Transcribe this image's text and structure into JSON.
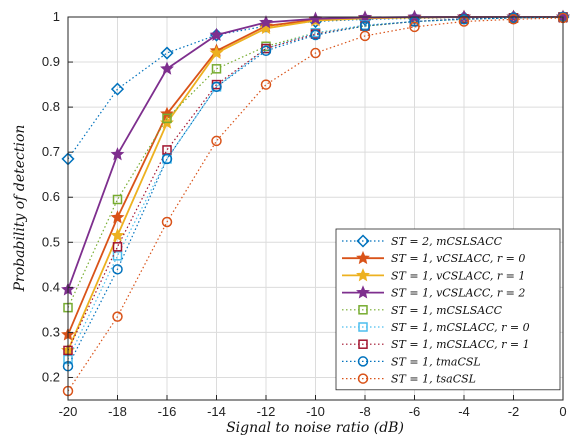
{
  "chart_data": {
    "type": "line",
    "xlabel": "Signal to noise ratio (dB)",
    "ylabel": "Probability of detection",
    "xlim": [
      -20,
      0
    ],
    "ylim": [
      0.15,
      1.0
    ],
    "xticks": [
      "-20",
      "-18",
      "-16",
      "-14",
      "-12",
      "-10",
      "-8",
      "-6",
      "-4",
      "-2",
      "0"
    ],
    "yticks": [
      "0.2",
      "0.3",
      "0.4",
      "0.5",
      "0.6",
      "0.7",
      "0.8",
      "0.9",
      "1"
    ],
    "grid": true,
    "legend_position": "bottom-right",
    "x": [
      -20,
      -18,
      -16,
      -14,
      -12,
      -10,
      -8,
      -6,
      -4,
      -2,
      0
    ],
    "series": [
      {
        "name": "ST = 2, mCSLSACC",
        "color": "#0072BD",
        "marker": "diamond",
        "line": "dotted",
        "filled": false,
        "values": [
          0.685,
          0.84,
          0.92,
          0.96,
          0.98,
          0.99,
          0.995,
          0.997,
          0.999,
          1.0,
          1.0
        ]
      },
      {
        "name": "ST = 1, vCSLACC, r = 0",
        "color": "#D95319",
        "marker": "star",
        "line": "solid",
        "filled": true,
        "values": [
          0.295,
          0.555,
          0.785,
          0.925,
          0.98,
          0.994,
          0.998,
          0.999,
          1.0,
          1.0,
          1.0
        ]
      },
      {
        "name": "ST = 1, vCSLACC, r = 1",
        "color": "#EDB120",
        "marker": "star",
        "line": "solid",
        "filled": true,
        "values": [
          0.26,
          0.515,
          0.765,
          0.92,
          0.975,
          0.992,
          0.997,
          0.999,
          1.0,
          1.0,
          1.0
        ]
      },
      {
        "name": "ST = 1, vCSLACC, r = 2",
        "color": "#7E2F8E",
        "marker": "star",
        "line": "solid",
        "filled": true,
        "values": [
          0.395,
          0.695,
          0.885,
          0.96,
          0.988,
          0.996,
          0.999,
          1.0,
          1.0,
          1.0,
          1.0
        ]
      },
      {
        "name": "ST = 1, mCSLSACC",
        "color": "#77AC30",
        "marker": "square",
        "line": "dotted",
        "filled": false,
        "values": [
          0.355,
          0.595,
          0.775,
          0.885,
          0.935,
          0.965,
          0.98,
          0.99,
          0.995,
          0.998,
          1.0
        ]
      },
      {
        "name": "ST = 1, mCSLACC, r = 0",
        "color": "#4DBEEE",
        "marker": "square",
        "line": "dotted",
        "filled": false,
        "values": [
          0.24,
          0.47,
          0.685,
          0.845,
          0.93,
          0.965,
          0.982,
          0.99,
          0.996,
          0.998,
          1.0
        ]
      },
      {
        "name": "ST = 1, mCSLACC, r = 1",
        "color": "#A2142F",
        "marker": "square",
        "line": "dotted",
        "filled": false,
        "values": [
          0.26,
          0.49,
          0.705,
          0.85,
          0.93,
          0.962,
          0.98,
          0.99,
          0.996,
          0.998,
          1.0
        ]
      },
      {
        "name": "ST = 1, tmaCSL",
        "color": "#0072BD",
        "marker": "circle",
        "line": "dotted",
        "filled": false,
        "values": [
          0.225,
          0.44,
          0.685,
          0.845,
          0.925,
          0.96,
          0.98,
          0.99,
          0.995,
          0.998,
          1.0
        ]
      },
      {
        "name": "ST = 1, tsaCSL",
        "color": "#D95319",
        "marker": "circle",
        "line": "dotted",
        "filled": false,
        "values": [
          0.17,
          0.335,
          0.545,
          0.725,
          0.85,
          0.92,
          0.958,
          0.978,
          0.99,
          0.995,
          0.998
        ]
      }
    ]
  }
}
